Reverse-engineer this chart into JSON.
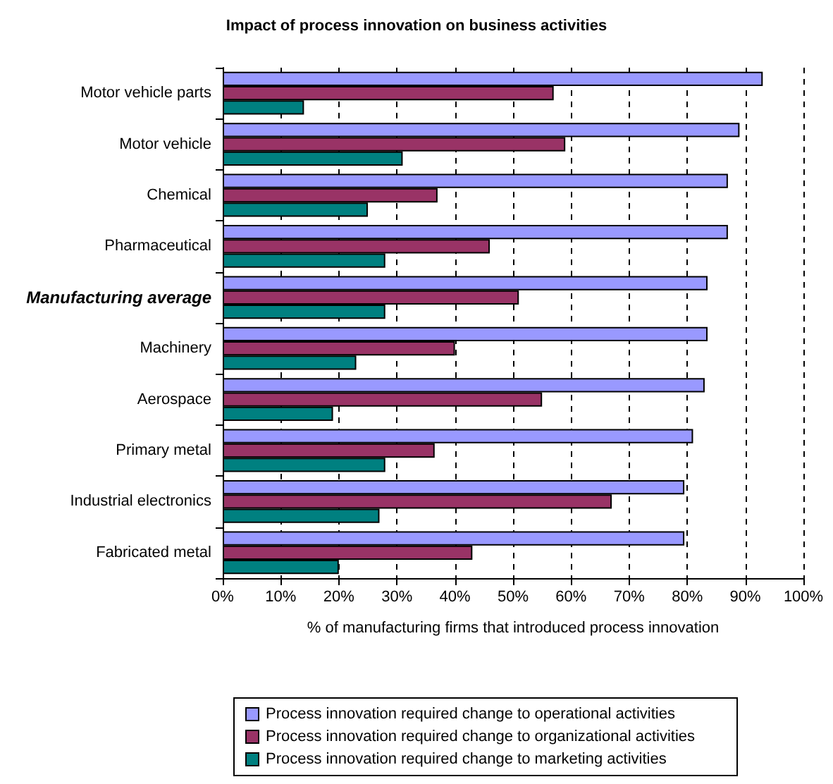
{
  "chart_data": {
    "type": "bar",
    "orientation": "horizontal",
    "title": "Impact of process innovation on business activities",
    "xlabel": "% of manufacturing firms that introduced process innovation",
    "categories": [
      "Motor vehicle parts",
      "Motor vehicle",
      "Chemical",
      "Pharmaceutical",
      "Manufacturing average",
      "Machinery",
      "Aerospace",
      "Primary metal",
      "Industrial electronics",
      "Fabricated metal"
    ],
    "series": [
      {
        "name": "Process innovation required change to operational activities",
        "color": "#9999ff",
        "values": [
          93,
          89,
          87,
          87,
          83.5,
          83.5,
          83,
          81,
          79.5,
          79.5
        ]
      },
      {
        "name": "Process innovation required change to organizational activities",
        "color": "#993366",
        "values": [
          57,
          59,
          37,
          46,
          51,
          40,
          55,
          36.5,
          67,
          43
        ]
      },
      {
        "name": "Process innovation required change to marketing activities",
        "color": "#008080",
        "values": [
          14,
          31,
          25,
          28,
          28,
          23,
          19,
          28,
          27,
          20
        ]
      }
    ],
    "xlim": [
      0,
      100
    ],
    "xticks": [
      {
        "value": 0,
        "label": "0%"
      },
      {
        "value": 10,
        "label": "10%"
      },
      {
        "value": 20,
        "label": "20%"
      },
      {
        "value": 30,
        "label": "30%"
      },
      {
        "value": 40,
        "label": "40%"
      },
      {
        "value": 50,
        "label": "50%"
      },
      {
        "value": 60,
        "label": "60%"
      },
      {
        "value": 70,
        "label": "70%"
      },
      {
        "value": 80,
        "label": "80%"
      },
      {
        "value": 90,
        "label": "90%"
      },
      {
        "value": 100,
        "label": "100%"
      }
    ],
    "grid": "x",
    "legend": "bottom"
  }
}
